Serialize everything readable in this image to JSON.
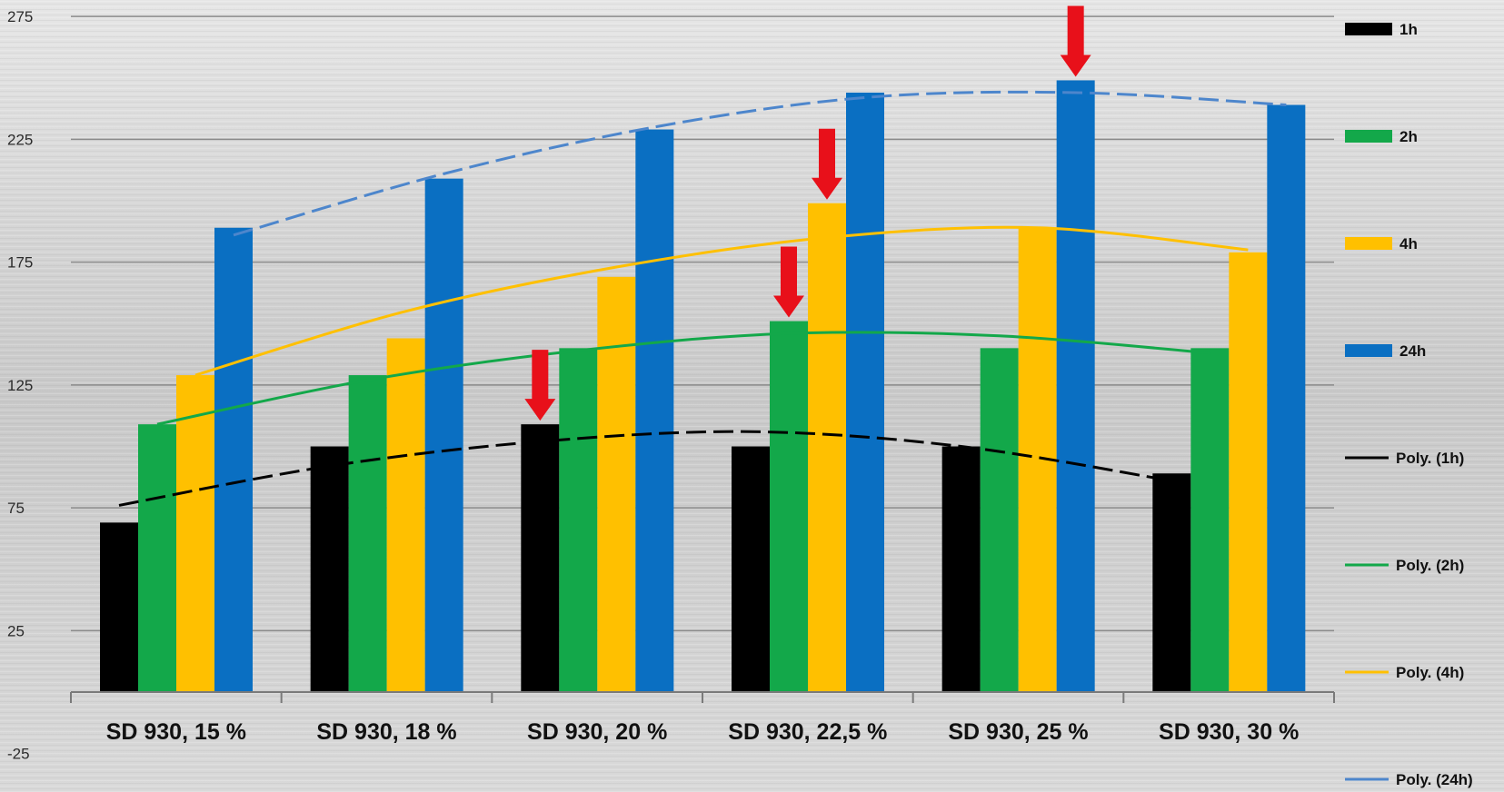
{
  "chart_data": {
    "type": "bar",
    "categories": [
      "SD 930, 15 %",
      "SD 930, 18 %",
      "SD 930, 20 %",
      "SD 930, 22,5 %",
      "SD 930, 25 %",
      "SD 930, 30 %"
    ],
    "ylim": [
      0,
      275
    ],
    "yticks": [
      -25,
      25,
      75,
      125,
      175,
      225,
      275
    ],
    "ytick_labels": [
      "-25",
      "25",
      "75",
      "125",
      "175",
      "225",
      "275"
    ],
    "grid": true,
    "legend_position": "right",
    "series": [
      {
        "name": "1h",
        "color": "#000000",
        "values": [
          69,
          100,
          109,
          100,
          100,
          89
        ]
      },
      {
        "name": "2h",
        "color": "#13a84a",
        "values": [
          109,
          129,
          140,
          151,
          140,
          140
        ]
      },
      {
        "name": "4h",
        "color": "#ffc000",
        "values": [
          129,
          144,
          169,
          199,
          189,
          179
        ]
      },
      {
        "name": "24h",
        "color": "#0a6fc2",
        "values": [
          189,
          209,
          229,
          244,
          249,
          239
        ]
      }
    ],
    "trendlines": [
      {
        "name": "Poly. (1h)",
        "color": "#000000",
        "dashed": true,
        "values": [
          76,
          92,
          102,
          106,
          100,
          86
        ]
      },
      {
        "name": "Poly. (2h)",
        "color": "#13a84a",
        "dashed": false,
        "values": [
          109,
          127,
          139,
          146,
          145,
          138
        ]
      },
      {
        "name": "Poly. (4h)",
        "color": "#ffc000",
        "dashed": false,
        "values": [
          129,
          155,
          173,
          185,
          189,
          180
        ]
      },
      {
        "name": "Poly. (24h)",
        "color": "#4d86cc",
        "dashed": true,
        "values": [
          186,
          211,
          230,
          242,
          244,
          239
        ]
      }
    ],
    "markers": [
      {
        "type": "red-arrow",
        "series": "1h",
        "category": "SD 930, 20 %"
      },
      {
        "type": "red-arrow",
        "series": "2h",
        "category": "SD 930, 22,5 %"
      },
      {
        "type": "red-arrow",
        "series": "4h",
        "category": "SD 930, 22,5 %"
      },
      {
        "type": "red-arrow",
        "series": "24h",
        "category": "SD 930, 25 %"
      }
    ]
  },
  "colors": {
    "arrow": "#e8101a",
    "grid": "#8a8a8a"
  }
}
